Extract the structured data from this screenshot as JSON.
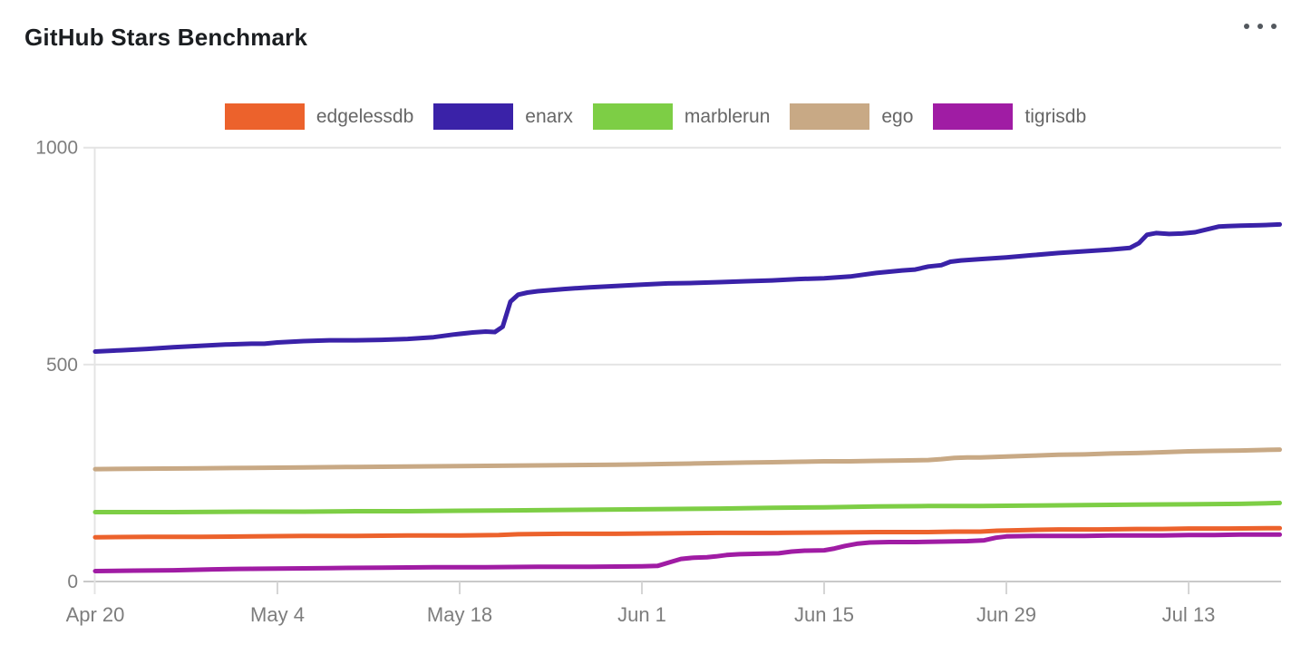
{
  "ui": {
    "title": "GitHub Stars Benchmark",
    "menu_icon": "ellipsis-horizontal-icon"
  },
  "chart_data": {
    "type": "line",
    "title": "GitHub Stars Benchmark",
    "xlabel": "",
    "ylabel": "",
    "ylim": [
      0,
      1000
    ],
    "y_ticks": [
      0,
      500,
      1000
    ],
    "x_unit": "days since Apr 20",
    "x_range_days": [
      0,
      91
    ],
    "x_tick_days": [
      0,
      14,
      28,
      42,
      56,
      70,
      84
    ],
    "x_tick_labels": [
      "Apr 20",
      "May 4",
      "May 18",
      "Jun 1",
      "Jun 15",
      "Jun 29",
      "Jul 13"
    ],
    "grid": "horizontal-only",
    "legend_position": "top",
    "series": [
      {
        "name": "edgelessdb",
        "color": "#EC622C",
        "points": [
          [
            0,
            102
          ],
          [
            4,
            103
          ],
          [
            8,
            103
          ],
          [
            12,
            104
          ],
          [
            16,
            105
          ],
          [
            20,
            105
          ],
          [
            24,
            106
          ],
          [
            28,
            106
          ],
          [
            31,
            107
          ],
          [
            32.5,
            109
          ],
          [
            36,
            110
          ],
          [
            40,
            110
          ],
          [
            44,
            111
          ],
          [
            48,
            112
          ],
          [
            52,
            112
          ],
          [
            56,
            113
          ],
          [
            60,
            114
          ],
          [
            64,
            114
          ],
          [
            66,
            115
          ],
          [
            68,
            115
          ],
          [
            69.3,
            117
          ],
          [
            70.5,
            118
          ],
          [
            72,
            119
          ],
          [
            74,
            120
          ],
          [
            77,
            120
          ],
          [
            80,
            121
          ],
          [
            82,
            121
          ],
          [
            84,
            122
          ],
          [
            87,
            122
          ],
          [
            91,
            123
          ]
        ]
      },
      {
        "name": "enarx",
        "color": "#3A22A8",
        "points": [
          [
            0,
            530
          ],
          [
            2,
            533
          ],
          [
            4,
            536
          ],
          [
            6,
            540
          ],
          [
            8,
            543
          ],
          [
            10,
            546
          ],
          [
            12,
            548
          ],
          [
            13,
            548
          ],
          [
            14,
            551
          ],
          [
            16,
            554
          ],
          [
            18,
            556
          ],
          [
            20,
            556
          ],
          [
            22,
            557
          ],
          [
            24,
            559
          ],
          [
            26,
            563
          ],
          [
            27.5,
            569
          ],
          [
            29,
            574
          ],
          [
            30,
            576
          ],
          [
            30.7,
            575
          ],
          [
            31.3,
            587
          ],
          [
            31.9,
            645
          ],
          [
            32.5,
            661
          ],
          [
            33.2,
            666
          ],
          [
            34,
            669
          ],
          [
            36,
            674
          ],
          [
            38,
            678
          ],
          [
            40,
            681
          ],
          [
            42,
            684
          ],
          [
            44,
            687
          ],
          [
            46,
            688
          ],
          [
            48,
            690
          ],
          [
            50,
            692
          ],
          [
            52,
            694
          ],
          [
            54,
            697
          ],
          [
            56,
            699
          ],
          [
            57,
            701
          ],
          [
            58,
            703
          ],
          [
            59,
            707
          ],
          [
            60,
            711
          ],
          [
            61,
            714
          ],
          [
            62,
            717
          ],
          [
            63,
            719
          ],
          [
            64,
            726
          ],
          [
            65,
            729
          ],
          [
            65.7,
            737
          ],
          [
            66.5,
            740
          ],
          [
            68,
            743
          ],
          [
            70,
            747
          ],
          [
            72,
            752
          ],
          [
            74,
            757
          ],
          [
            76,
            761
          ],
          [
            78,
            765
          ],
          [
            79.5,
            769
          ],
          [
            80.2,
            780
          ],
          [
            80.8,
            799
          ],
          [
            81.5,
            803
          ],
          [
            82.5,
            801
          ],
          [
            83.5,
            802
          ],
          [
            84.5,
            805
          ],
          [
            85.5,
            812
          ],
          [
            86.3,
            818
          ],
          [
            87,
            819
          ],
          [
            88,
            820
          ],
          [
            89.5,
            821
          ],
          [
            91,
            823
          ]
        ]
      },
      {
        "name": "marblerun",
        "color": "#7DCE45",
        "points": [
          [
            0,
            160
          ],
          [
            6,
            160
          ],
          [
            12,
            161
          ],
          [
            16,
            161
          ],
          [
            20,
            162
          ],
          [
            24,
            162
          ],
          [
            28,
            163
          ],
          [
            32,
            164
          ],
          [
            36,
            165
          ],
          [
            40,
            166
          ],
          [
            44,
            167
          ],
          [
            48,
            168
          ],
          [
            52,
            170
          ],
          [
            56,
            171
          ],
          [
            60,
            173
          ],
          [
            64,
            174
          ],
          [
            68,
            174
          ],
          [
            72,
            175
          ],
          [
            76,
            176
          ],
          [
            80,
            177
          ],
          [
            84,
            178
          ],
          [
            88,
            179
          ],
          [
            91,
            181
          ]
        ]
      },
      {
        "name": "ego",
        "color": "#C8A985",
        "points": [
          [
            0,
            259
          ],
          [
            4,
            260
          ],
          [
            8,
            261
          ],
          [
            12,
            262
          ],
          [
            16,
            263
          ],
          [
            20,
            264
          ],
          [
            24,
            265
          ],
          [
            28,
            266
          ],
          [
            32,
            267
          ],
          [
            36,
            268
          ],
          [
            40,
            269
          ],
          [
            42,
            270
          ],
          [
            44,
            271
          ],
          [
            46,
            272
          ],
          [
            48,
            273
          ],
          [
            50,
            274
          ],
          [
            52,
            275
          ],
          [
            54,
            276
          ],
          [
            56,
            277
          ],
          [
            58,
            277
          ],
          [
            60,
            278
          ],
          [
            62,
            279
          ],
          [
            64,
            280
          ],
          [
            65,
            282
          ],
          [
            66,
            285
          ],
          [
            67,
            286
          ],
          [
            68,
            286
          ],
          [
            69,
            287
          ],
          [
            70,
            288
          ],
          [
            72,
            290
          ],
          [
            74,
            292
          ],
          [
            76,
            293
          ],
          [
            78,
            295
          ],
          [
            80,
            296
          ],
          [
            82,
            298
          ],
          [
            84,
            300
          ],
          [
            86,
            301
          ],
          [
            88,
            302
          ],
          [
            91,
            304
          ]
        ]
      },
      {
        "name": "tigrisdb",
        "color": "#A01CA4",
        "points": [
          [
            0,
            24
          ],
          [
            3,
            25
          ],
          [
            6,
            26
          ],
          [
            9,
            28
          ],
          [
            11,
            29
          ],
          [
            14,
            30
          ],
          [
            18,
            31
          ],
          [
            22,
            32
          ],
          [
            26,
            33
          ],
          [
            30,
            33
          ],
          [
            34,
            34
          ],
          [
            38,
            34
          ],
          [
            42,
            35
          ],
          [
            43.2,
            36
          ],
          [
            44.2,
            45
          ],
          [
            45,
            52
          ],
          [
            46,
            55
          ],
          [
            47,
            56
          ],
          [
            47.7,
            58
          ],
          [
            48.5,
            61
          ],
          [
            49.5,
            63
          ],
          [
            51,
            64
          ],
          [
            52.5,
            65
          ],
          [
            53.5,
            69
          ],
          [
            54.5,
            71
          ],
          [
            56,
            72
          ],
          [
            56.8,
            76
          ],
          [
            57.6,
            82
          ],
          [
            58.5,
            87
          ],
          [
            59.5,
            90
          ],
          [
            61,
            91
          ],
          [
            63,
            91
          ],
          [
            65,
            92
          ],
          [
            67,
            93
          ],
          [
            68.3,
            95
          ],
          [
            69.2,
            101
          ],
          [
            70,
            104
          ],
          [
            72,
            105
          ],
          [
            74,
            105
          ],
          [
            76,
            105
          ],
          [
            78,
            106
          ],
          [
            80,
            106
          ],
          [
            82,
            106
          ],
          [
            84,
            107
          ],
          [
            86,
            107
          ],
          [
            88,
            108
          ],
          [
            91,
            108
          ]
        ]
      }
    ]
  },
  "colors": {
    "title_text": "#1b1e21",
    "axis_text": "#7d7d7d",
    "legend_text": "#666666",
    "gridline": "#e4e4e4",
    "baseline": "#c9c9c9",
    "tick": "#d5d5d5",
    "menu_dots": "#53585e",
    "background": "#ffffff"
  }
}
